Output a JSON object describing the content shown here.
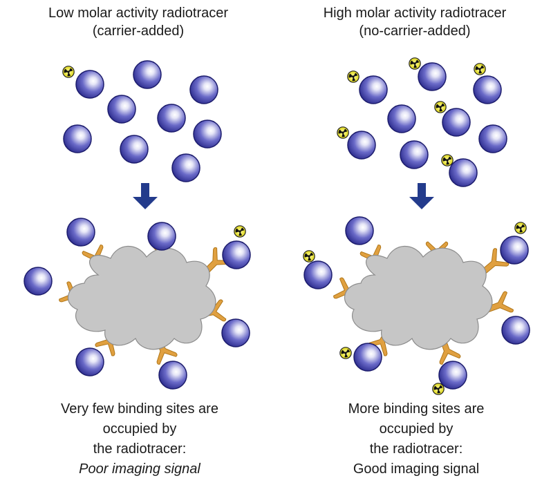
{
  "left": {
    "title_line1": "Low molar activity radiotracer",
    "title_line2": "(carrier-added)",
    "caption_line1": "Very few binding sites are",
    "caption_line2": "occupied by",
    "caption_line3": "the radiotracer:",
    "caption_line4": "Poor imaging signal"
  },
  "right": {
    "title_line1": "High molar activity radiotracer",
    "title_line2": "(no-carrier-added)",
    "caption_line1": "More binding sites are",
    "caption_line2": "occupied by",
    "caption_line3": "the radiotracer:",
    "caption_line4": "Good imaging signal"
  },
  "colors": {
    "molecule": "#2f2f9a",
    "receptor": "#e0a040",
    "cell": "#c6c6c6",
    "arrow": "#233b8c",
    "radiation_symbol": "#e8e000"
  },
  "icons": [
    "radiation-icon",
    "down-arrow-icon",
    "molecule-icon",
    "receptor-icon",
    "cell-icon"
  ]
}
